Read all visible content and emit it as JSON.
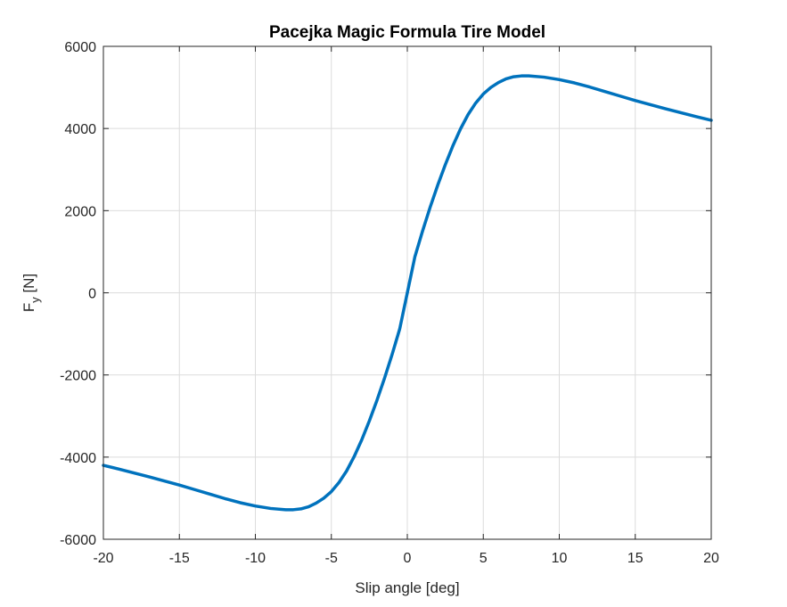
{
  "chart_data": {
    "type": "line",
    "title": "Pacejka Magic Formula Tire Model",
    "xlabel": "Slip angle [deg]",
    "ylabel": {
      "main": "F",
      "subscript": "y",
      "unit": " [N]"
    },
    "xlim": [
      -20,
      20
    ],
    "ylim": [
      -6000,
      6000
    ],
    "xticks": [
      -20,
      -15,
      -10,
      -5,
      0,
      5,
      10,
      15,
      20
    ],
    "yticks": [
      -6000,
      -4000,
      -2000,
      0,
      2000,
      4000,
      6000
    ],
    "grid": true,
    "series": [
      {
        "color": "#0072BD",
        "x": [
          -20,
          -19,
          -18,
          -17,
          -16,
          -15,
          -14,
          -13,
          -12,
          -11,
          -10,
          -9,
          -8,
          -7.5,
          -7,
          -6.5,
          -6,
          -5.5,
          -5,
          -4.5,
          -4,
          -3.5,
          -3,
          -2.5,
          -2,
          -1.5,
          -1,
          -0.5,
          0,
          0.5,
          1,
          1.5,
          2,
          2.5,
          3,
          3.5,
          4,
          4.5,
          5,
          5.5,
          6,
          6.5,
          7,
          7.5,
          8,
          9,
          10,
          11,
          12,
          13,
          14,
          15,
          16,
          17,
          18,
          19,
          20
        ],
        "y": [
          -4200,
          -4290,
          -4385,
          -4480,
          -4580,
          -4680,
          -4790,
          -4900,
          -5010,
          -5110,
          -5190,
          -5250,
          -5280,
          -5280,
          -5260,
          -5210,
          -5120,
          -5000,
          -4840,
          -4620,
          -4340,
          -3990,
          -3580,
          -3120,
          -2620,
          -2080,
          -1500,
          -880,
          0,
          880,
          1500,
          2080,
          2620,
          3120,
          3580,
          3990,
          4340,
          4620,
          4840,
          5000,
          5120,
          5210,
          5260,
          5280,
          5280,
          5250,
          5190,
          5110,
          5010,
          4900,
          4790,
          4680,
          4580,
          4480,
          4385,
          4290,
          4200
        ]
      }
    ]
  }
}
